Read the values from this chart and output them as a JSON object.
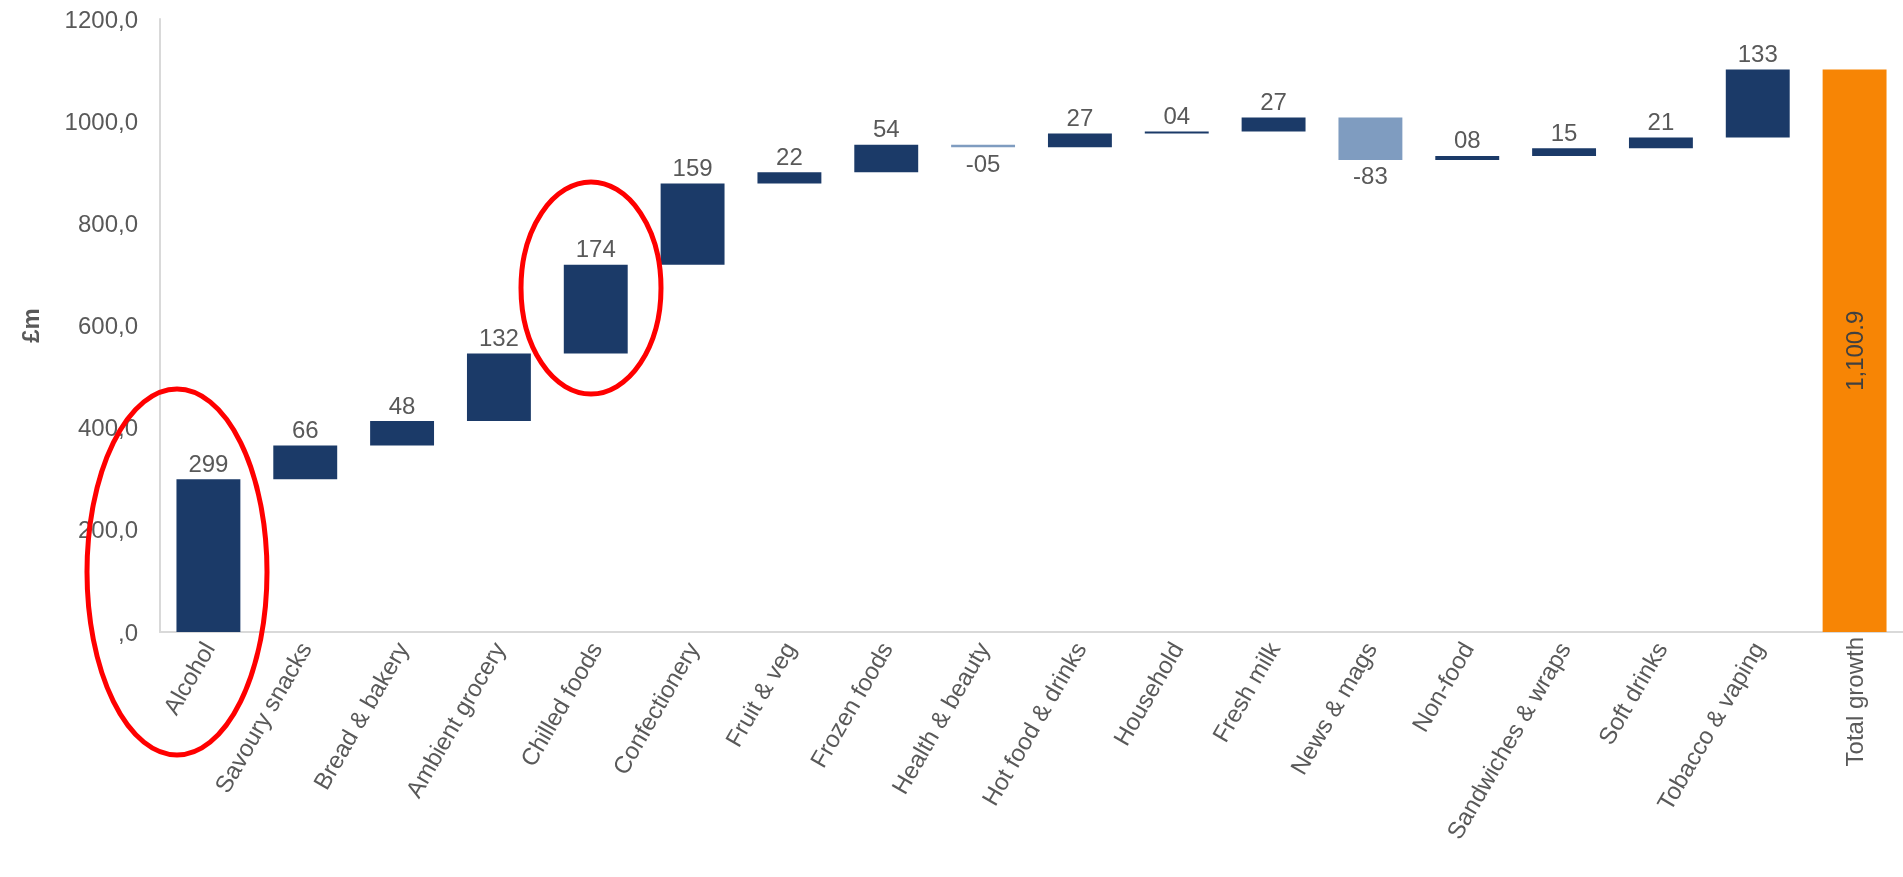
{
  "chart_data": {
    "type": "bar",
    "ylabel": "£m",
    "categories": [
      "Alcohol",
      "Savoury snacks",
      "Bread & bakery",
      "Ambient grocery",
      "Chilled foods",
      "Confectionery",
      "Fruit & veg",
      "Frozen foods",
      "Health & beauty",
      "Hot food & drinks",
      "Household",
      "Fresh milk",
      "News & mags",
      "Non-food",
      "Sandwiches & wraps",
      "Soft drinks",
      "Tobacco & vaping",
      "Total growth"
    ],
    "values": [
      299,
      66,
      48,
      132,
      174,
      159,
      22,
      54,
      -5,
      27,
      4,
      27,
      -83,
      8,
      15,
      21,
      133,
      1100.9
    ],
    "base": [
      0,
      299,
      365,
      413,
      545,
      719,
      878,
      900,
      954,
      949,
      976,
      980,
      1007,
      924,
      932,
      947,
      968,
      0
    ],
    "colors": [
      "#1b3a68",
      "#1b3a68",
      "#1b3a68",
      "#1b3a68",
      "#1b3a68",
      "#1b3a68",
      "#1b3a68",
      "#1b3a68",
      "#7f9cc0",
      "#1b3a68",
      "#1b3a68",
      "#1b3a68",
      "#7f9cc0",
      "#1b3a68",
      "#1b3a68",
      "#1b3a68",
      "#1b3a68",
      "#f78505"
    ],
    "value_labels": [
      "299",
      "66",
      "48",
      "132",
      "174",
      "159",
      "22",
      "54",
      "-05",
      "27",
      "04",
      "27",
      "-83",
      "08",
      "15",
      "21",
      "133",
      "1,100.9"
    ],
    "ylim": [
      0,
      1200
    ],
    "yticks": [
      {
        "value": 0,
        "label": ",0"
      },
      {
        "value": 200,
        "label": "200,0"
      },
      {
        "value": 400,
        "label": "400,0"
      },
      {
        "value": 600,
        "label": "600,0"
      },
      {
        "value": 800,
        "label": "800,0"
      },
      {
        "value": 1000,
        "label": "1000,0"
      },
      {
        "value": 1200,
        "label": "1200,0"
      }
    ]
  }
}
